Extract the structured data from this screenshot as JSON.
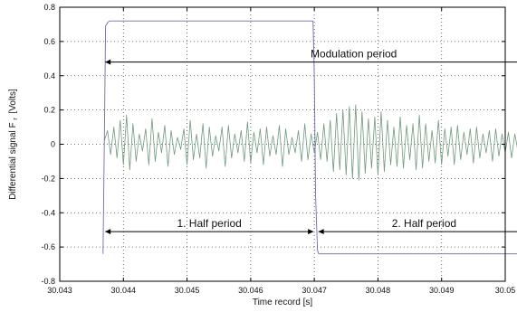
{
  "chart_data": {
    "type": "line",
    "xlabel": "Time record [s]",
    "ylabel": "Differential signal F",
    "ylabel_sub": "r",
    "ylabel_unit": "[Volts]",
    "xlim": [
      30.043,
      30.05
    ],
    "ylim": [
      -0.8,
      0.8
    ],
    "x_ticks": [
      30.043,
      30.044,
      30.045,
      30.046,
      30.047,
      30.048,
      30.049,
      30.05
    ],
    "x_tick_labels": [
      "30.043",
      "30.044",
      "30.045",
      "30.046",
      "30.047",
      "30.048",
      "30.049",
      "30.05"
    ],
    "y_ticks": [
      -0.8,
      -0.6,
      -0.4,
      -0.2,
      0,
      0.2,
      0.4,
      0.6,
      0.8
    ],
    "y_tick_labels": [
      "-0.8",
      "-0.6",
      "-0.4",
      "-0.2",
      "0",
      "0.2",
      "0.4",
      "0.6",
      "0.8"
    ],
    "grid": true,
    "series": [
      {
        "color": "#6e6ea8",
        "x": [
          30.04368,
          30.0437,
          30.04372,
          30.04375,
          30.04378,
          30.044,
          30.0455,
          30.04698,
          30.047,
          30.04702,
          30.04705,
          30.04707,
          30.0473,
          30.049,
          30.05035,
          30.05038,
          30.0504,
          30.05043,
          30.05045
        ],
        "y": [
          -0.64,
          0.0,
          0.69,
          0.71,
          0.72,
          0.72,
          0.72,
          0.72,
          0.4,
          -0.3,
          -0.62,
          -0.64,
          -0.64,
          -0.64,
          -0.64,
          -0.3,
          0.4,
          0.7,
          0.72
        ]
      },
      {
        "color": "#6f9a7c",
        "x": [
          30.0437,
          30.04375,
          30.0438,
          30.04385,
          30.0439,
          30.04395,
          30.044,
          30.04405,
          30.0441,
          30.04415,
          30.0442,
          30.04425,
          30.0443,
          30.04435,
          30.0444,
          30.04445,
          30.0445,
          30.04455,
          30.0446,
          30.04465,
          30.0447,
          30.04475,
          30.0448,
          30.04485,
          30.0449,
          30.04495,
          30.045,
          30.04505,
          30.0451,
          30.04515,
          30.0452,
          30.04525,
          30.0453,
          30.04535,
          30.0454,
          30.04545,
          30.0455,
          30.04555,
          30.0456,
          30.04565,
          30.0457,
          30.04575,
          30.0458,
          30.04585,
          30.0459,
          30.04595,
          30.046,
          30.04605,
          30.0461,
          30.04615,
          30.0462,
          30.04625,
          30.0463,
          30.04635,
          30.0464,
          30.04645,
          30.0465,
          30.04655,
          30.0466,
          30.04665,
          30.0467,
          30.04675,
          30.0468,
          30.04685,
          30.0469,
          30.04695,
          30.047,
          30.04705,
          30.0471,
          30.04715,
          30.0472,
          30.04725,
          30.0473,
          30.04735,
          30.0474,
          30.04745,
          30.0475,
          30.04755,
          30.0476,
          30.04765,
          30.0477,
          30.04775,
          30.0478,
          30.04785,
          30.0479,
          30.04795,
          30.048,
          30.04805,
          30.0481,
          30.04815,
          30.0482,
          30.04825,
          30.0483,
          30.04835,
          30.0484,
          30.04845,
          30.0485,
          30.04855,
          30.0486,
          30.04865,
          30.0487,
          30.04875,
          30.0488,
          30.04885,
          30.0489,
          30.04895,
          30.049,
          30.04905,
          30.0491,
          30.04915,
          30.0492,
          30.04925,
          30.0493,
          30.04935,
          30.0494,
          30.04945,
          30.0495,
          30.04955,
          30.0496,
          30.04965,
          30.0497,
          30.04975,
          30.0498,
          30.04985,
          30.0499,
          30.04995,
          30.05,
          30.05005,
          30.0501,
          30.05015,
          30.0502,
          30.05025,
          30.0503,
          30.05035,
          30.0504
        ],
        "y": [
          0.02,
          0.08,
          -0.06,
          0.1,
          -0.08,
          0.14,
          -0.12,
          0.17,
          -0.15,
          0.12,
          -0.1,
          0.06,
          -0.04,
          0.09,
          -0.12,
          0.15,
          -0.1,
          0.07,
          -0.05,
          0.11,
          -0.13,
          0.08,
          -0.06,
          0.04,
          -0.03,
          0.09,
          -0.12,
          0.14,
          -0.09,
          0.06,
          -0.08,
          0.12,
          -0.14,
          0.1,
          -0.07,
          0.05,
          -0.04,
          0.1,
          -0.13,
          0.11,
          -0.08,
          0.06,
          -0.05,
          0.08,
          -0.1,
          0.13,
          -0.11,
          0.07,
          -0.05,
          0.09,
          -0.12,
          0.1,
          -0.07,
          0.05,
          -0.06,
          0.11,
          -0.13,
          0.09,
          -0.06,
          0.04,
          -0.05,
          0.08,
          -0.1,
          0.12,
          -0.09,
          0.06,
          -0.05,
          0.07,
          -0.09,
          0.12,
          -0.1,
          0.14,
          -0.16,
          0.18,
          -0.15,
          0.2,
          -0.18,
          0.22,
          -0.2,
          0.23,
          -0.21,
          0.19,
          -0.17,
          0.15,
          -0.14,
          0.16,
          -0.18,
          0.19,
          -0.16,
          0.14,
          -0.12,
          0.1,
          -0.13,
          0.16,
          -0.14,
          0.11,
          -0.09,
          0.12,
          -0.15,
          0.17,
          -0.14,
          0.12,
          -0.1,
          0.08,
          -0.11,
          0.14,
          -0.12,
          0.09,
          -0.07,
          0.1,
          -0.12,
          0.11,
          -0.09,
          0.07,
          -0.06,
          0.09,
          -0.11,
          0.1,
          -0.08,
          0.06,
          -0.05,
          0.08,
          -0.1,
          0.09,
          -0.07,
          0.06,
          -0.05,
          0.07,
          -0.08,
          0.06,
          -0.04,
          0.05,
          -0.06,
          0.05,
          -0.03
        ]
      }
    ],
    "annotations": [
      {
        "text": "Modulation period",
        "x0": 30.0437,
        "x1": 30.0504,
        "y": 0.48
      },
      {
        "text": "1. Half period",
        "x0": 30.0437,
        "x1": 30.047,
        "y": -0.51
      },
      {
        "text": "2. Half period",
        "x0": 30.04705,
        "x1": 30.0504,
        "y": -0.51
      }
    ]
  }
}
